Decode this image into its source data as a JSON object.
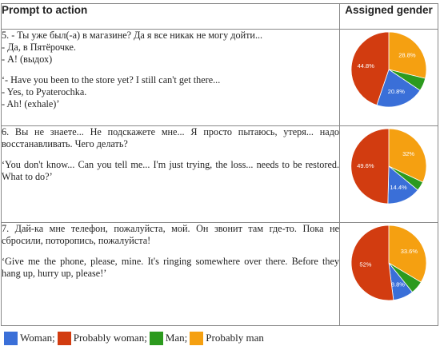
{
  "table": {
    "header_left": "Prompt to action",
    "header_right": "Assigned gender"
  },
  "rows": [
    {
      "ru": "5. - Ты уже был(-а) в магазине? Да я все никак не могу дойти...\n- Да, в Пятёрочке.\n- А! (выдох)",
      "en": "‘- Have you been to the store yet? I still can't get there...\n- Yes, to Pyaterochka.\n- Ah! (exhale)’"
    },
    {
      "ru": "6. Вы не знаете... Не подскажете мне... Я просто пытаюсь, утеря... надо восстанавливать. Чего делать?",
      "en": "‘You don't know... Can you tell me... I'm just trying, the loss... needs to be restored. What to do?’"
    },
    {
      "ru": "7. Дай-ка мне телефон, пожалуйста, мой. Он звонит там где-то. Пока не сбросили, поторопись, пожалуйста!",
      "en": "‘Give me the phone, please, mine. It's ringing somewhere over there. Before they hang up, hurry up, please!’"
    }
  ],
  "legend": [
    {
      "label": "Woman;",
      "color": "#3a6fd8"
    },
    {
      "label": "Probably woman;",
      "color": "#d23c10"
    },
    {
      "label": "Man;",
      "color": "#2c9a1e"
    },
    {
      "label": "Probably man",
      "color": "#f5a011"
    }
  ],
  "chart_data": [
    {
      "type": "pie",
      "categories": [
        "Woman",
        "Probably woman",
        "Man",
        "Probably man"
      ],
      "values": [
        20.8,
        44.8,
        5.6,
        28.8
      ],
      "labels": [
        "20.8%",
        "44.8%",
        "",
        "28.8%"
      ],
      "colors": [
        "#3a6fd8",
        "#d23c10",
        "#2c9a1e",
        "#f5a011"
      ]
    },
    {
      "type": "pie",
      "categories": [
        "Woman",
        "Probably woman",
        "Man",
        "Probably man"
      ],
      "values": [
        14.4,
        49.6,
        4.0,
        32.0
      ],
      "labels": [
        "14.4%",
        "49.6%",
        "",
        "32%"
      ],
      "colors": [
        "#3a6fd8",
        "#d23c10",
        "#2c9a1e",
        "#f5a011"
      ]
    },
    {
      "type": "pie",
      "categories": [
        "Woman",
        "Probably woman",
        "Man",
        "Probably man"
      ],
      "values": [
        8.8,
        52.0,
        5.6,
        33.6
      ],
      "labels": [
        "8.8%",
        "52%",
        "",
        "33.6%"
      ],
      "colors": [
        "#3a6fd8",
        "#d23c10",
        "#2c9a1e",
        "#f5a011"
      ]
    }
  ]
}
